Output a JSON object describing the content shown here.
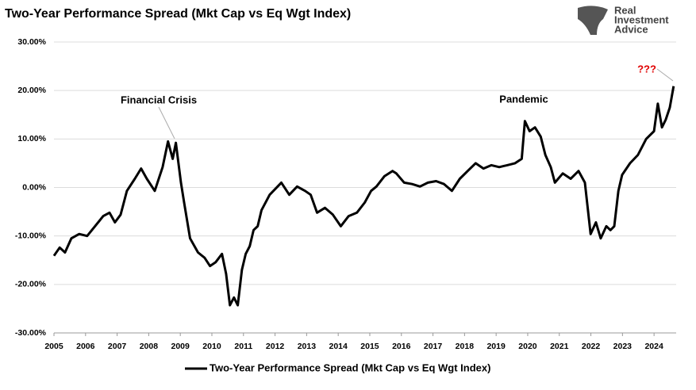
{
  "chart_data": {
    "type": "line",
    "title": "Two-Year Performance Spread (Mkt Cap vs Eq Wgt Index)",
    "annotations": [
      "Financial Crisis",
      "Pandemic",
      "???"
    ],
    "x": [
      2005.0,
      2005.18,
      2005.35,
      2005.55,
      2005.8,
      2006.05,
      2006.3,
      2006.56,
      2006.76,
      2006.93,
      2007.11,
      2007.31,
      2007.56,
      2007.76,
      2007.94,
      2008.19,
      2008.44,
      2008.61,
      2008.76,
      2008.86,
      2009.02,
      2009.12,
      2009.31,
      2009.56,
      2009.77,
      2009.94,
      2010.12,
      2010.32,
      2010.45,
      2010.57,
      2010.7,
      2010.82,
      2010.95,
      2011.07,
      2011.2,
      2011.32,
      2011.45,
      2011.57,
      2011.83,
      2012.08,
      2012.2,
      2012.45,
      2012.7,
      2012.95,
      2013.13,
      2013.33,
      2013.58,
      2013.83,
      2014.08,
      2014.33,
      2014.59,
      2014.84,
      2015.04,
      2015.21,
      2015.46,
      2015.72,
      2015.84,
      2016.09,
      2016.34,
      2016.59,
      2016.84,
      2017.1,
      2017.35,
      2017.6,
      2017.85,
      2018.1,
      2018.35,
      2018.6,
      2018.85,
      2019.1,
      2019.35,
      2019.6,
      2019.81,
      2019.91,
      2020.06,
      2020.23,
      2020.41,
      2020.56,
      2020.73,
      2020.86,
      2021.11,
      2021.36,
      2021.61,
      2021.81,
      2021.99,
      2022.16,
      2022.31,
      2022.49,
      2022.62,
      2022.74,
      2022.87,
      2022.99,
      2023.24,
      2023.49,
      2023.75,
      2024.0,
      2024.12,
      2024.25,
      2024.37,
      2024.5,
      2024.62
    ],
    "series": [
      {
        "name": "Two-Year Performance Spread (Mkt Cap vs Eq Wgt Index)",
        "color": "#000000",
        "values": [
          -14.1,
          -12.4,
          -13.4,
          -10.5,
          -9.6,
          -10.0,
          -8.0,
          -5.9,
          -5.2,
          -7.2,
          -5.6,
          -0.7,
          1.8,
          3.9,
          1.8,
          -0.7,
          4.2,
          9.5,
          5.9,
          9.2,
          1.0,
          -3.1,
          -10.5,
          -13.4,
          -14.5,
          -16.2,
          -15.4,
          -13.7,
          -17.8,
          -24.3,
          -22.7,
          -24.3,
          -17.0,
          -13.7,
          -12.1,
          -8.8,
          -8.0,
          -4.7,
          -1.5,
          0.2,
          1.0,
          -1.5,
          0.2,
          -0.7,
          -1.5,
          -5.2,
          -4.2,
          -5.6,
          -8.0,
          -5.9,
          -5.2,
          -3.1,
          -0.7,
          0.2,
          2.3,
          3.4,
          2.9,
          1.0,
          0.7,
          0.2,
          1.0,
          1.3,
          0.7,
          -0.7,
          1.8,
          3.4,
          5.0,
          3.9,
          4.6,
          4.2,
          4.6,
          5.0,
          5.9,
          13.7,
          11.6,
          12.4,
          10.5,
          6.7,
          4.2,
          1.0,
          2.9,
          1.8,
          3.4,
          1.0,
          -9.6,
          -7.2,
          -10.5,
          -8.0,
          -8.8,
          -8.0,
          -0.7,
          2.6,
          5.0,
          6.7,
          10.0,
          11.6,
          17.3,
          12.4,
          14.0,
          16.5,
          20.9
        ]
      }
    ],
    "xlim": [
      2005,
      2024.7
    ],
    "xticks": [
      2005,
      2006,
      2007,
      2008,
      2009,
      2010,
      2011,
      2012,
      2013,
      2014,
      2015,
      2016,
      2017,
      2018,
      2019,
      2020,
      2021,
      2022,
      2023,
      2024
    ],
    "ylim": [
      -30,
      30
    ],
    "yticks": [
      {
        "value": -30,
        "label": "-30.00%"
      },
      {
        "value": -20,
        "label": "-20.00%"
      },
      {
        "value": -10,
        "label": "-10.00%"
      },
      {
        "value": 0,
        "label": "0.00%"
      },
      {
        "value": 10,
        "label": "10.00%"
      },
      {
        "value": 20,
        "label": "20.00%"
      },
      {
        "value": 30,
        "label": "30.00%"
      }
    ],
    "grid": true,
    "legend": "bottom"
  },
  "logo": {
    "lines": [
      "Real",
      "Investment",
      "Advice"
    ]
  }
}
